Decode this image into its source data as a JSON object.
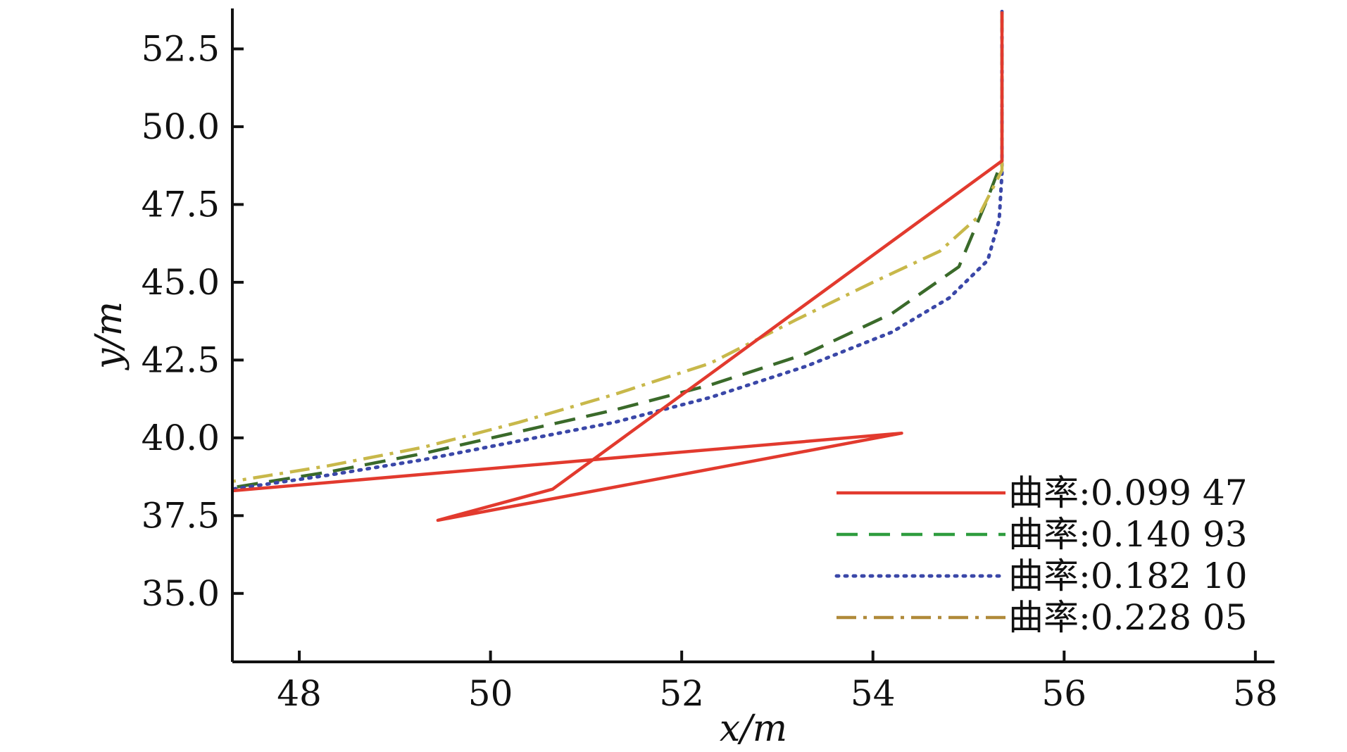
{
  "chart_data": {
    "type": "line",
    "xlabel": "x/m",
    "ylabel": "y/m",
    "xlim": [
      47.3,
      58.2
    ],
    "ylim": [
      32.8,
      53.8
    ],
    "xticks": [
      48,
      50,
      52,
      54,
      56,
      58
    ],
    "yticks": [
      35.0,
      37.5,
      40.0,
      42.5,
      45.0,
      47.5,
      50.0,
      52.5
    ],
    "xtick_labels": [
      "48",
      "50",
      "52",
      "54",
      "56",
      "58"
    ],
    "ytick_labels": [
      "35.0",
      "37.5",
      "40.0",
      "42.5",
      "45.0",
      "47.5",
      "50.0",
      "52.5"
    ],
    "grid": false,
    "legend_position": "bottom-right",
    "series": [
      {
        "name": "曲率:0.099 47",
        "color": "#e23a2e",
        "style": "solid",
        "x": [
          55.35,
          55.35,
          55.35,
          50.65,
          49.45,
          54.3,
          47.3
        ],
        "y": [
          53.7,
          50.0,
          48.9,
          38.35,
          37.35,
          40.15,
          38.3
        ]
      },
      {
        "name": "曲率:0.140 93",
        "color": "#2e9c3e",
        "line_color": "#3a6a2a",
        "style": "dashed",
        "x": [
          55.35,
          55.35,
          55.35,
          55.2,
          54.9,
          54.2,
          53.3,
          52.3,
          51.3,
          50.3,
          49.3,
          48.3,
          47.3
        ],
        "y": [
          53.7,
          50.0,
          48.9,
          47.7,
          45.5,
          44.0,
          42.7,
          41.7,
          40.9,
          40.2,
          39.5,
          38.9,
          38.4
        ]
      },
      {
        "name": "曲率:0.182 10",
        "color": "#3a47a8",
        "style": "dotted",
        "x": [
          55.35,
          55.35,
          55.35,
          55.32,
          55.2,
          54.8,
          54.2,
          53.3,
          52.3,
          51.3,
          50.3,
          49.3,
          48.3,
          47.3
        ],
        "y": [
          53.7,
          50.0,
          48.5,
          47.0,
          45.7,
          44.5,
          43.4,
          42.3,
          41.3,
          40.5,
          39.9,
          39.3,
          38.8,
          38.35
        ]
      },
      {
        "name": "曲率:0.228 05",
        "color": "#b08a3a",
        "line_color": "#c8b84a",
        "style": "dashdot",
        "x": [
          55.35,
          55.35,
          55.35,
          55.1,
          54.7,
          54.0,
          53.2,
          52.3,
          51.3,
          50.3,
          49.3,
          48.3,
          47.3
        ],
        "y": [
          53.7,
          50.0,
          48.6,
          47.1,
          46.0,
          45.0,
          43.8,
          42.4,
          41.4,
          40.5,
          39.7,
          39.1,
          38.6
        ]
      }
    ]
  }
}
